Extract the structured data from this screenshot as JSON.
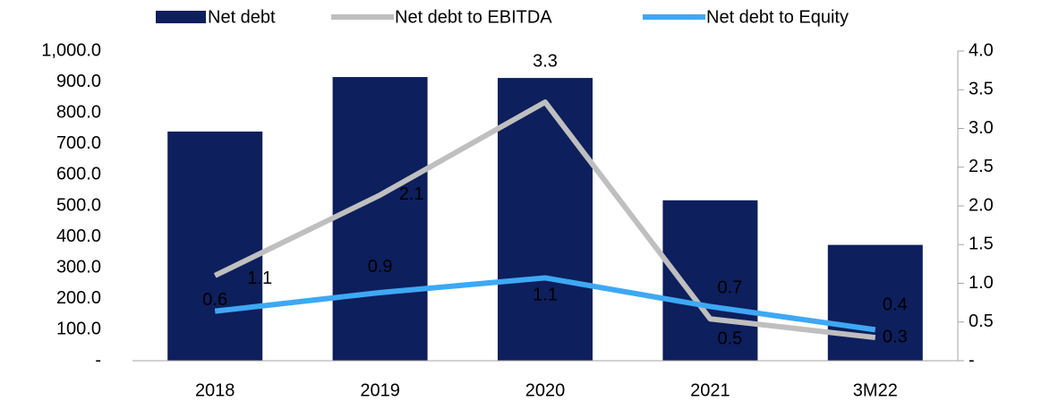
{
  "chart_data": {
    "type": "bar",
    "categories": [
      "2018",
      "2019",
      "2020",
      "2021",
      "3M22"
    ],
    "series": [
      {
        "name": "Net debt",
        "type": "bar",
        "color": "#0d1f5c",
        "values": [
          740,
          916,
          913,
          518,
          374
        ]
      },
      {
        "name": "Net debt to EBITDA",
        "type": "line",
        "axis": "y2",
        "color": "#bfbfbf",
        "values": [
          1.1,
          2.14,
          3.34,
          0.54,
          0.3
        ],
        "value_labels": [
          "1.1",
          "2.1",
          "3.3",
          "0.5",
          "0.3"
        ]
      },
      {
        "name": "Net debt to Equity",
        "type": "line",
        "axis": "y2",
        "color": "#3ea8f4",
        "values": [
          0.64,
          0.88,
          1.07,
          0.7,
          0.4
        ],
        "value_labels": [
          "0.6",
          "0.9",
          "1.1",
          "0.7",
          "0.4"
        ]
      }
    ],
    "ylim": [
      0,
      1000
    ],
    "yticks": [
      {
        "value": 0,
        "label": "-"
      },
      {
        "value": 100,
        "label": "100.0"
      },
      {
        "value": 200,
        "label": "200.0"
      },
      {
        "value": 300,
        "label": "300.0"
      },
      {
        "value": 400,
        "label": "400.0"
      },
      {
        "value": 500,
        "label": "500.0"
      },
      {
        "value": 600,
        "label": "600.0"
      },
      {
        "value": 700,
        "label": "700.0"
      },
      {
        "value": 800,
        "label": "800.0"
      },
      {
        "value": 900,
        "label": "900.0"
      },
      {
        "value": 1000,
        "label": "1,000.0"
      }
    ],
    "y2lim": [
      0,
      4
    ],
    "y2ticks": [
      {
        "value": 0,
        "label": "-"
      },
      0.5,
      {
        "value": 1,
        "label": "1.0"
      },
      1.5,
      {
        "value": 2,
        "label": "2.0"
      },
      2.5,
      {
        "value": 3,
        "label": "3.0"
      },
      3.5,
      {
        "value": 4,
        "label": "4.0"
      }
    ],
    "legend": "top"
  }
}
